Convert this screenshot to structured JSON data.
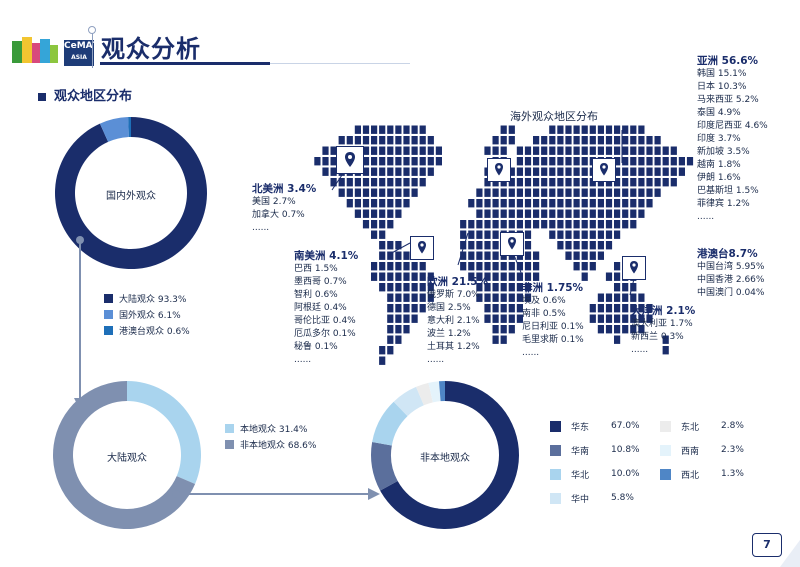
{
  "header": {
    "title": "观众分析",
    "logo_text": "CeMAT",
    "logo_sub": "ASIA"
  },
  "section_title": "观众地区分布",
  "map_title": "海外观众地区分布",
  "page_number": "7",
  "colors": {
    "navy": "#1a2d6b",
    "mid_blue": "#5b8fd6",
    "light_blue": "#a9d4ee",
    "slate": "#7f90b0",
    "pale": "#d7ebf7"
  },
  "regions": {
    "asia": {
      "head": "亚洲 56.6%",
      "items": [
        "韩国 15.1%",
        "日本 10.3%",
        "马来西亚 5.2%",
        "泰国 4.9%",
        "印度尼西亚 4.6%",
        "印度 3.7%",
        "新加坡 3.5%",
        "越南 1.8%",
        "伊朗 1.6%",
        "巴基斯坦 1.5%",
        "菲律宾 1.2%"
      ],
      "more": "......"
    },
    "hk_tw": {
      "head": "港澳台8.7%",
      "items": [
        "中国台湾 5.95%",
        "中国香港 2.66%",
        "中国澳门 0.04%"
      ]
    },
    "north_america": {
      "head": "北美洲 3.4%",
      "items": [
        "美国 2.7%",
        "加拿大 0.7%"
      ],
      "more": "......"
    },
    "south_america": {
      "head": "南美洲 4.1%",
      "items": [
        "巴西 1.5%",
        "墨西哥 0.7%",
        "智利 0.6%",
        "阿根廷 0.4%",
        "哥伦比亚 0.4%",
        "厄瓜多尔 0.1%",
        "秘鲁 0.1%"
      ],
      "more": "......"
    },
    "europe": {
      "head": "欧洲 21.5%",
      "items": [
        "俄罗斯 7.0%",
        "德国 2.5%",
        "意大利 2.1%",
        "波兰 1.2%",
        "土耳其 1.2%"
      ],
      "more": "......"
    },
    "africa": {
      "head": "非洲 1.75%",
      "items": [
        "埃及 0.6%",
        "南非 0.5%",
        "尼日利亚 0.1%",
        "毛里求斯 0.1%"
      ],
      "more": "......"
    },
    "oceania": {
      "head": "大洋洲 2.1%",
      "items": [
        "澳大利亚 1.7%",
        "新西兰 0.3%"
      ],
      "more": "......"
    }
  },
  "chart_data": [
    {
      "type": "pie",
      "title": "国内外观众",
      "categories": [
        "大陆观众",
        "国外观众",
        "港澳台观众"
      ],
      "values": [
        93.3,
        6.1,
        0.6
      ],
      "labels": [
        "大陆观众 93.3%",
        "国外观众 6.1%",
        "港澳台观众 0.6%"
      ],
      "colors": [
        "#1a2d6b",
        "#5b8fd6",
        "#1e6fb8"
      ]
    },
    {
      "type": "pie",
      "title": "大陆观众",
      "categories": [
        "本地观众",
        "非本地观众"
      ],
      "values": [
        31.4,
        68.6
      ],
      "labels": [
        "本地观众 31.4%",
        "非本地观众 68.6%"
      ],
      "colors": [
        "#a9d4ee",
        "#7f90b0"
      ]
    },
    {
      "type": "pie",
      "title": "非本地观众",
      "categories": [
        "华东",
        "华南",
        "华北",
        "华中",
        "东北",
        "西南",
        "西北"
      ],
      "values": [
        67.0,
        10.8,
        10.0,
        5.8,
        2.8,
        2.3,
        1.3
      ],
      "percent_labels": [
        "67.0%",
        "10.8%",
        "10.0%",
        "5.8%",
        "2.8%",
        "2.3%",
        "1.3%"
      ],
      "colors": [
        "#1a2d6b",
        "#5b6f9c",
        "#a9d4ee",
        "#d0e6f5",
        "#ececec",
        "#e4f3fb",
        "#4f86c6"
      ]
    }
  ]
}
